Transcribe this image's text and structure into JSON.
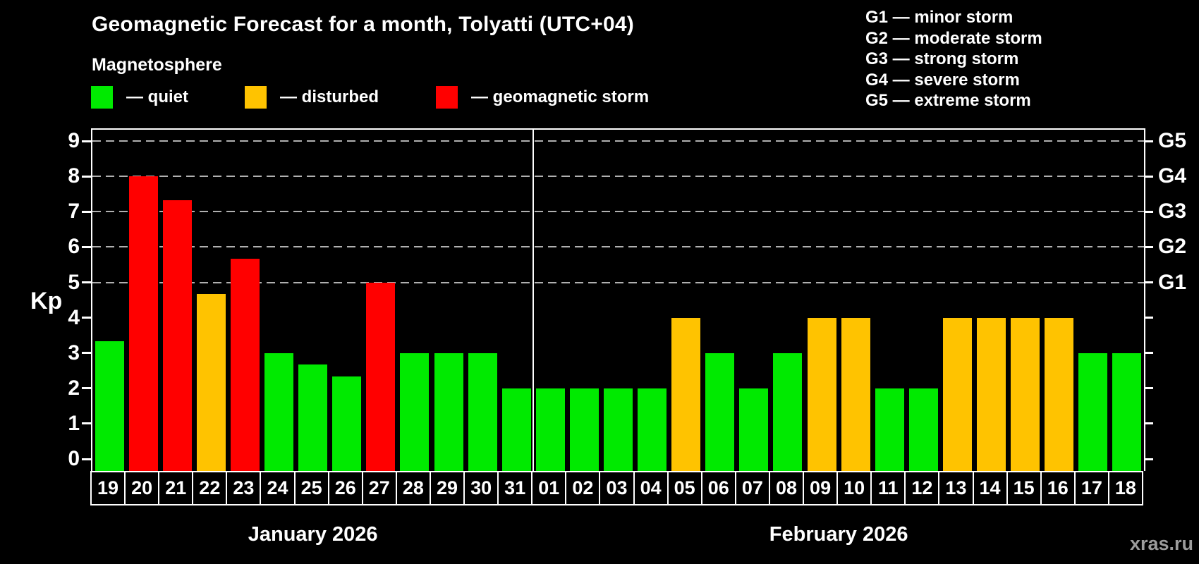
{
  "title": "Geomagnetic Forecast for a month, Tolyatti (UTC+04)",
  "subtitle": "Magnetosphere",
  "status_colors": {
    "quiet": "#00ea00",
    "disturbed": "#ffc300",
    "storm": "#ff0000"
  },
  "legend": {
    "items": [
      {
        "status": "quiet",
        "label": "— quiet"
      },
      {
        "status": "disturbed",
        "label": "— disturbed"
      },
      {
        "status": "storm",
        "label": "— geomagnetic storm"
      }
    ]
  },
  "g_legend": {
    "items": [
      {
        "label": "G1 — minor storm"
      },
      {
        "label": "G2 — moderate storm"
      },
      {
        "label": "G3 — strong storm"
      },
      {
        "label": "G4 — severe storm"
      },
      {
        "label": "G5 — extreme storm"
      }
    ]
  },
  "axis": {
    "kp_label": "Kp",
    "left_ticks": [
      0,
      1,
      2,
      3,
      4,
      5,
      6,
      7,
      8,
      9
    ],
    "g_levels": [
      {
        "label": "G1",
        "kp": 5
      },
      {
        "label": "G2",
        "kp": 6
      },
      {
        "label": "G3",
        "kp": 7
      },
      {
        "label": "G4",
        "kp": 8
      },
      {
        "label": "G5",
        "kp": 9
      }
    ]
  },
  "months": [
    {
      "label": "January 2026",
      "days": 13
    },
    {
      "label": "February 2026",
      "days": 18
    }
  ],
  "watermark": "xras.ru",
  "chart_data": {
    "type": "bar",
    "title": "Geomagnetic Forecast for a month, Tolyatti (UTC+04)",
    "ylabel": "Kp",
    "ylim": [
      0,
      9.4
    ],
    "grid": "dashed horizontal lines at Kp 5,6,7,8,9",
    "legend_position": "top",
    "points": [
      {
        "month": "January 2026",
        "day": "19",
        "kp": 3.33,
        "status": "quiet"
      },
      {
        "month": "January 2026",
        "day": "20",
        "kp": 8.0,
        "status": "storm"
      },
      {
        "month": "January 2026",
        "day": "21",
        "kp": 7.33,
        "status": "storm"
      },
      {
        "month": "January 2026",
        "day": "22",
        "kp": 4.67,
        "status": "disturbed"
      },
      {
        "month": "January 2026",
        "day": "23",
        "kp": 5.67,
        "status": "storm"
      },
      {
        "month": "January 2026",
        "day": "24",
        "kp": 3.0,
        "status": "quiet"
      },
      {
        "month": "January 2026",
        "day": "25",
        "kp": 2.67,
        "status": "quiet"
      },
      {
        "month": "January 2026",
        "day": "26",
        "kp": 2.33,
        "status": "quiet"
      },
      {
        "month": "January 2026",
        "day": "27",
        "kp": 5.0,
        "status": "storm"
      },
      {
        "month": "January 2026",
        "day": "28",
        "kp": 3.0,
        "status": "quiet"
      },
      {
        "month": "January 2026",
        "day": "29",
        "kp": 3.0,
        "status": "quiet"
      },
      {
        "month": "January 2026",
        "day": "30",
        "kp": 3.0,
        "status": "quiet"
      },
      {
        "month": "January 2026",
        "day": "31",
        "kp": 2.0,
        "status": "quiet"
      },
      {
        "month": "February 2026",
        "day": "01",
        "kp": 2.0,
        "status": "quiet"
      },
      {
        "month": "February 2026",
        "day": "02",
        "kp": 2.0,
        "status": "quiet"
      },
      {
        "month": "February 2026",
        "day": "03",
        "kp": 2.0,
        "status": "quiet"
      },
      {
        "month": "February 2026",
        "day": "04",
        "kp": 2.0,
        "status": "quiet"
      },
      {
        "month": "February 2026",
        "day": "05",
        "kp": 4.0,
        "status": "disturbed"
      },
      {
        "month": "February 2026",
        "day": "06",
        "kp": 3.0,
        "status": "quiet"
      },
      {
        "month": "February 2026",
        "day": "07",
        "kp": 2.0,
        "status": "quiet"
      },
      {
        "month": "February 2026",
        "day": "08",
        "kp": 3.0,
        "status": "quiet"
      },
      {
        "month": "February 2026",
        "day": "09",
        "kp": 4.0,
        "status": "disturbed"
      },
      {
        "month": "February 2026",
        "day": "10",
        "kp": 4.0,
        "status": "disturbed"
      },
      {
        "month": "February 2026",
        "day": "11",
        "kp": 2.0,
        "status": "quiet"
      },
      {
        "month": "February 2026",
        "day": "12",
        "kp": 2.0,
        "status": "quiet"
      },
      {
        "month": "February 2026",
        "day": "13",
        "kp": 4.0,
        "status": "disturbed"
      },
      {
        "month": "February 2026",
        "day": "14",
        "kp": 4.0,
        "status": "disturbed"
      },
      {
        "month": "February 2026",
        "day": "15",
        "kp": 4.0,
        "status": "disturbed"
      },
      {
        "month": "February 2026",
        "day": "16",
        "kp": 4.0,
        "status": "disturbed"
      },
      {
        "month": "February 2026",
        "day": "17",
        "kp": 3.0,
        "status": "quiet"
      },
      {
        "month": "February 2026",
        "day": "18",
        "kp": 3.0,
        "status": "quiet"
      }
    ]
  }
}
